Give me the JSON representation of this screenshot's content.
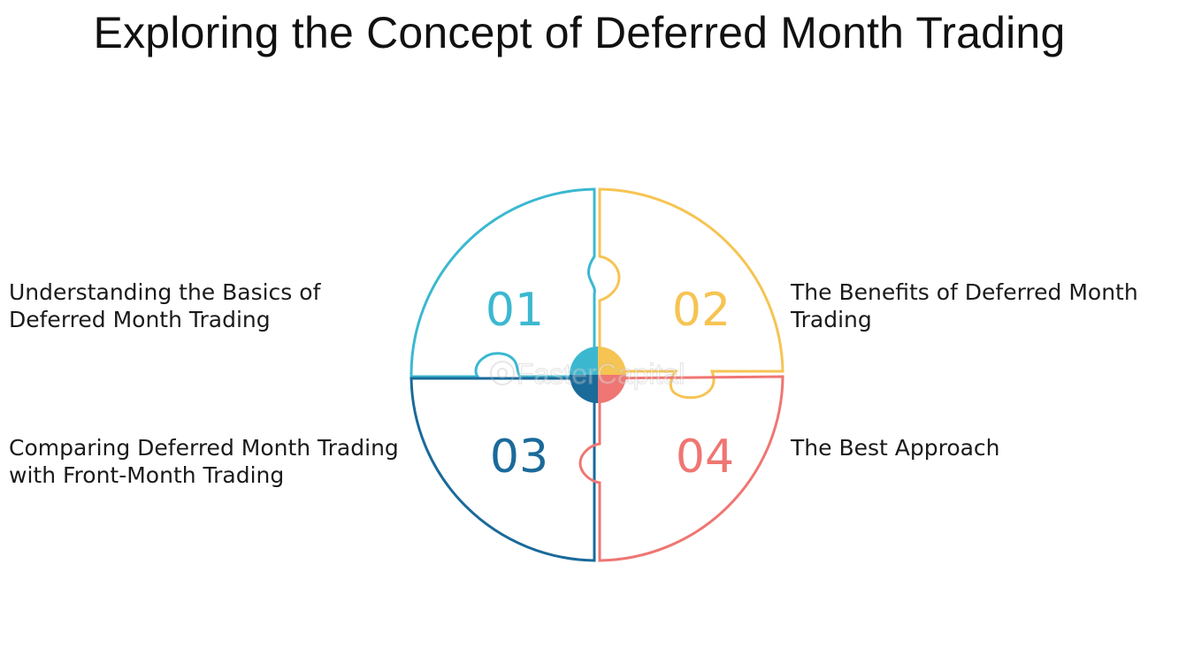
{
  "title": "Exploring the Concept of Deferred Month Trading",
  "pieces": [
    {
      "number": "01",
      "label_lines": [
        "Understanding the Basics of",
        "Deferred Month Trading"
      ],
      "color": "#3bb8d0"
    },
    {
      "number": "02",
      "label_lines": [
        "The Benefits of Deferred Month",
        "Trading"
      ],
      "color": "#f6c453"
    },
    {
      "number": "03",
      "label_lines": [
        "Comparing Deferred Month Trading",
        "with Front-Month Trading"
      ],
      "color": "#1a6a9a"
    },
    {
      "number": "04",
      "label_lines": [
        "The Best Approach"
      ],
      "color": "#ef7672"
    }
  ],
  "watermark": "FasterCapital"
}
